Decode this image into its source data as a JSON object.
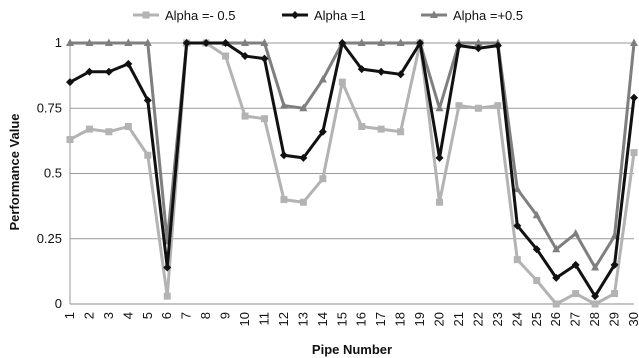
{
  "chart_data": {
    "type": "line",
    "xlabel": "Pipe Number",
    "ylabel": "Performance Value",
    "ylim": [
      0,
      1
    ],
    "yticks": [
      "0",
      "0.25",
      "0.5",
      "0.75",
      "1"
    ],
    "y_tick_values": [
      0,
      0.25,
      0.5,
      0.75,
      1
    ],
    "x": [
      1,
      2,
      3,
      4,
      5,
      6,
      7,
      8,
      9,
      10,
      11,
      12,
      13,
      14,
      15,
      16,
      17,
      18,
      19,
      20,
      21,
      22,
      23,
      24,
      25,
      26,
      27,
      28,
      29,
      30
    ],
    "grid": "horizontal",
    "legend_position": "top",
    "series": [
      {
        "name": "Alpha =- 0.5",
        "color": "#b3b3b3",
        "marker": "square",
        "values": [
          0.63,
          0.67,
          0.66,
          0.68,
          0.57,
          0.03,
          1,
          1,
          0.95,
          0.72,
          0.71,
          0.4,
          0.39,
          0.48,
          0.85,
          0.68,
          0.67,
          0.66,
          1,
          0.39,
          0.76,
          0.75,
          0.76,
          0.17,
          0.09,
          0,
          0.04,
          0,
          0.04,
          0.58
        ]
      },
      {
        "name": "Alpha =1",
        "color": "#111111",
        "marker": "diamond",
        "values": [
          0.85,
          0.89,
          0.89,
          0.92,
          0.78,
          0.14,
          1,
          1,
          1,
          0.95,
          0.94,
          0.57,
          0.56,
          0.66,
          1,
          0.9,
          0.89,
          0.88,
          1,
          0.56,
          0.99,
          0.98,
          0.99,
          0.3,
          0.21,
          0.1,
          0.15,
          0.03,
          0.15,
          0.79
        ]
      },
      {
        "name": "Alpha =+0.5",
        "color": "#7f7f7f",
        "marker": "triangle",
        "values": [
          1,
          1,
          1,
          1,
          1,
          0.24,
          1,
          1,
          1,
          1,
          1,
          0.76,
          0.75,
          0.86,
          1,
          1,
          1,
          1,
          1,
          0.75,
          1,
          1,
          1,
          0.44,
          0.34,
          0.21,
          0.27,
          0.14,
          0.26,
          1
        ]
      }
    ]
  }
}
